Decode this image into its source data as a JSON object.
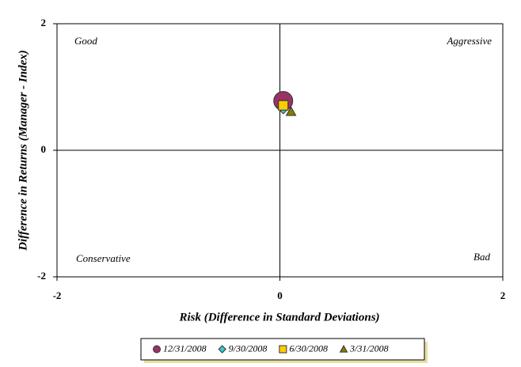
{
  "chart_data": {
    "type": "scatter",
    "x_label": "Risk (Difference in Standard Deviations)",
    "y_label": "Difference in Returns (Manager - Index)",
    "xlim": [
      -2,
      2
    ],
    "xticks": [
      -2,
      0,
      2
    ],
    "ylim": [
      -2,
      2
    ],
    "yticks": [
      -2,
      0,
      2
    ],
    "annotations": [
      {
        "text": "Good"
      },
      {
        "text": "Aggressive"
      },
      {
        "text": "Conservative"
      },
      {
        "text": "Bad"
      }
    ],
    "legend": "bottom",
    "series": [
      {
        "name": "12/31/2008",
        "color": "#993366",
        "marker": "circle",
        "x": [
          0.03
        ],
        "y": [
          0.78
        ]
      },
      {
        "name": "9/30/2008",
        "color": "#33cccc",
        "marker": "diamond",
        "x": [
          0.03
        ],
        "y": [
          0.64
        ]
      },
      {
        "name": "6/30/2008",
        "color": "#ffcc00",
        "marker": "square",
        "x": [
          0.03
        ],
        "y": [
          0.71
        ]
      },
      {
        "name": "3/31/2008",
        "color": "#808000",
        "marker": "triangle",
        "x": [
          0.1
        ],
        "y": [
          0.61
        ]
      }
    ]
  }
}
